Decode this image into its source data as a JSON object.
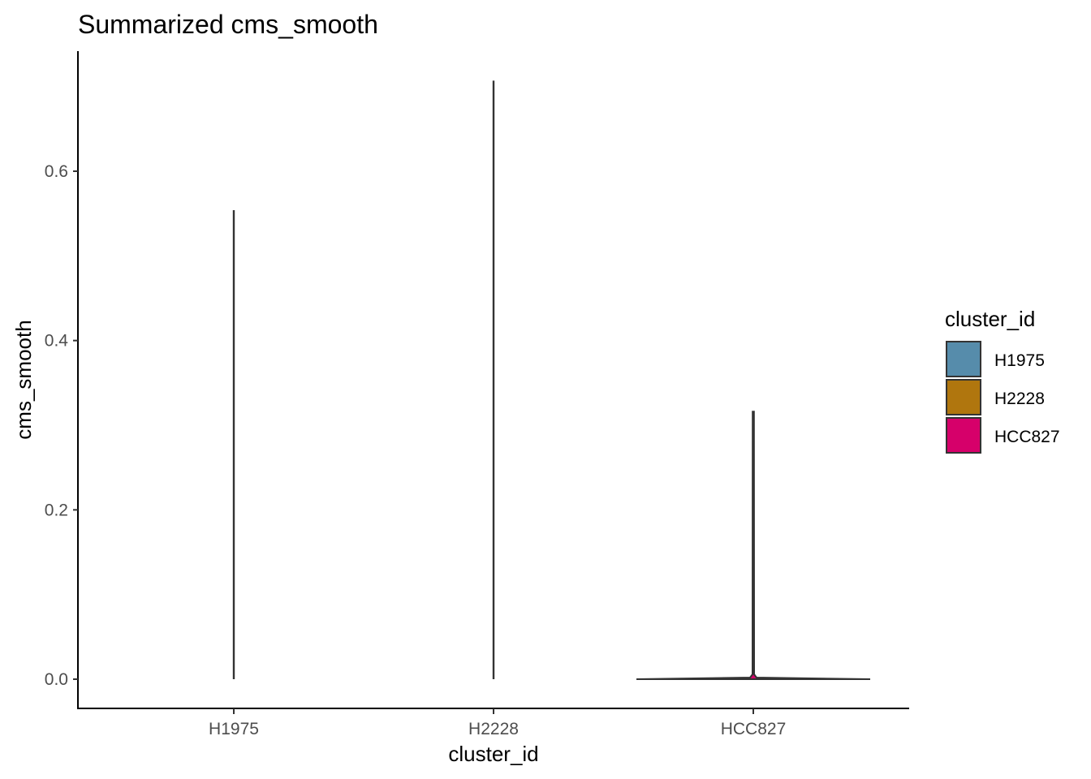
{
  "chart_data": {
    "type": "violin",
    "title": "Summarized cms_smooth",
    "xlabel": "cluster_id",
    "ylabel": "cms_smooth",
    "categories": [
      "H1975",
      "H2228",
      "HCC827"
    ],
    "ylim": [
      -0.035,
      0.745
    ],
    "yticks": [
      0.0,
      0.2,
      0.4,
      0.6
    ],
    "ytick_labels": [
      "0.0",
      "0.2",
      "0.4",
      "0.6"
    ],
    "grid": false,
    "legend": {
      "title": "cluster_id",
      "position": "right",
      "items": [
        {
          "label": "H1975",
          "color": "#568CAB"
        },
        {
          "label": "H2228",
          "color": "#B0760E"
        },
        {
          "label": "HCC827",
          "color": "#D6006A"
        }
      ]
    },
    "series": [
      {
        "name": "H1975",
        "min": 0.0,
        "max": 0.554,
        "base_halfwidth": 0.0
      },
      {
        "name": "H2228",
        "min": 0.0,
        "max": 0.707,
        "base_halfwidth": 0.0
      },
      {
        "name": "HCC827",
        "min": 0.0,
        "max": 0.316,
        "base_halfwidth": 0.45
      }
    ],
    "outline_color": "#333333"
  }
}
